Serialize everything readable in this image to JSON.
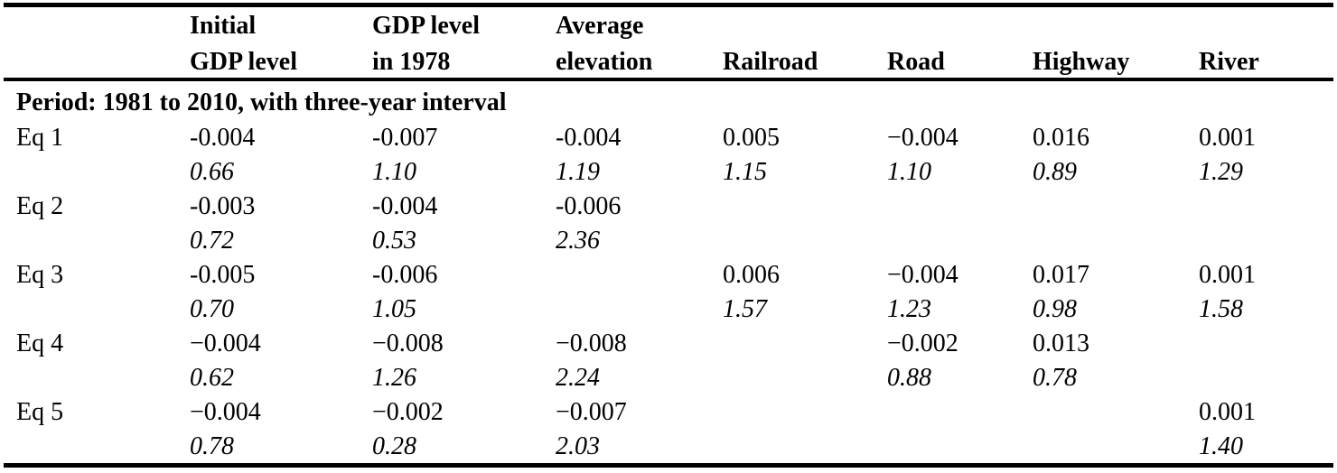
{
  "table": {
    "headers": [
      {
        "line1": "Initial",
        "line2": "GDP level"
      },
      {
        "line1": "GDP level",
        "line2": "in 1978"
      },
      {
        "line1": "Average",
        "line2": "elevation"
      },
      {
        "line1": "",
        "line2": "Railroad"
      },
      {
        "line1": "",
        "line2": "Road"
      },
      {
        "line1": "",
        "line2": "Highway"
      },
      {
        "line1": "",
        "line2": "River"
      }
    ],
    "section_title": "Period: 1981 to 2010, with three-year interval",
    "rows": [
      {
        "label": "Eq 1",
        "coef": [
          "-0.004",
          "-0.007",
          "-0.004",
          "0.005",
          "−0.004",
          "0.016",
          "0.001"
        ],
        "tstat": [
          "0.66",
          "1.10",
          "1.19",
          "1.15",
          "1.10",
          "0.89",
          "1.29"
        ]
      },
      {
        "label": "Eq 2",
        "coef": [
          "-0.003",
          "-0.004",
          "-0.006",
          "",
          "",
          "",
          ""
        ],
        "tstat": [
          "0.72",
          "0.53",
          "2.36",
          "",
          "",
          "",
          ""
        ]
      },
      {
        "label": "Eq 3",
        "coef": [
          "-0.005",
          "-0.006",
          "",
          "0.006",
          "−0.004",
          "0.017",
          "0.001"
        ],
        "tstat": [
          "0.70",
          "1.05",
          "",
          "1.57",
          "1.23",
          "0.98",
          "1.58"
        ]
      },
      {
        "label": "Eq 4",
        "coef": [
          "−0.004",
          "−0.008",
          "−0.008",
          "",
          "−0.002",
          "0.013",
          ""
        ],
        "tstat": [
          "0.62",
          "1.26",
          "2.24",
          "",
          "0.88",
          "0.78",
          ""
        ]
      },
      {
        "label": "Eq 5",
        "coef": [
          "−0.004",
          "−0.002",
          "−0.007",
          "",
          "",
          "",
          "0.001"
        ],
        "tstat": [
          "0.78",
          "0.28",
          "2.03",
          "",
          "",
          "",
          "1.40"
        ]
      }
    ]
  }
}
